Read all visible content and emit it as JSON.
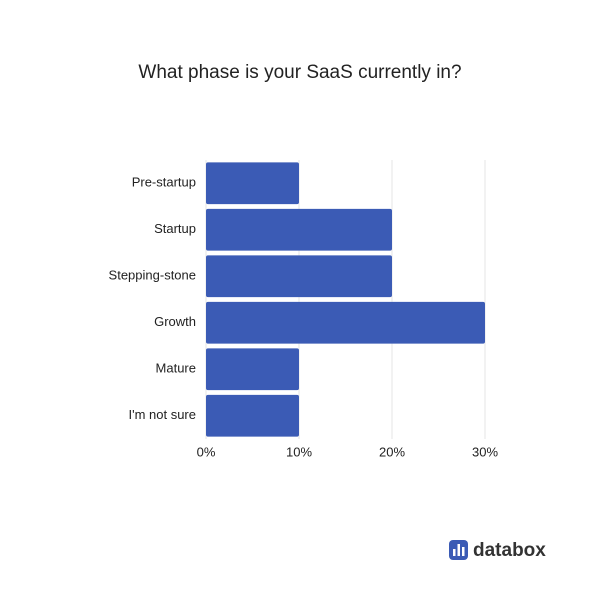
{
  "chart_data": {
    "type": "bar",
    "orientation": "horizontal",
    "title": "What phase is your SaaS currently in?",
    "categories": [
      "Pre-startup",
      "Startup",
      "Stepping-stone",
      "Growth",
      "Mature",
      "I'm not sure"
    ],
    "values": [
      10,
      20,
      20,
      30,
      10,
      10
    ],
    "color": "#3b5bb5",
    "xlim": [
      0,
      30
    ],
    "xticks": [
      {
        "value": 0,
        "label": "0%"
      },
      {
        "value": 10,
        "label": "10%"
      },
      {
        "value": 20,
        "label": "20%"
      },
      {
        "value": 30,
        "label": "30%"
      }
    ],
    "grid": true
  },
  "logo": {
    "text": "databox"
  }
}
